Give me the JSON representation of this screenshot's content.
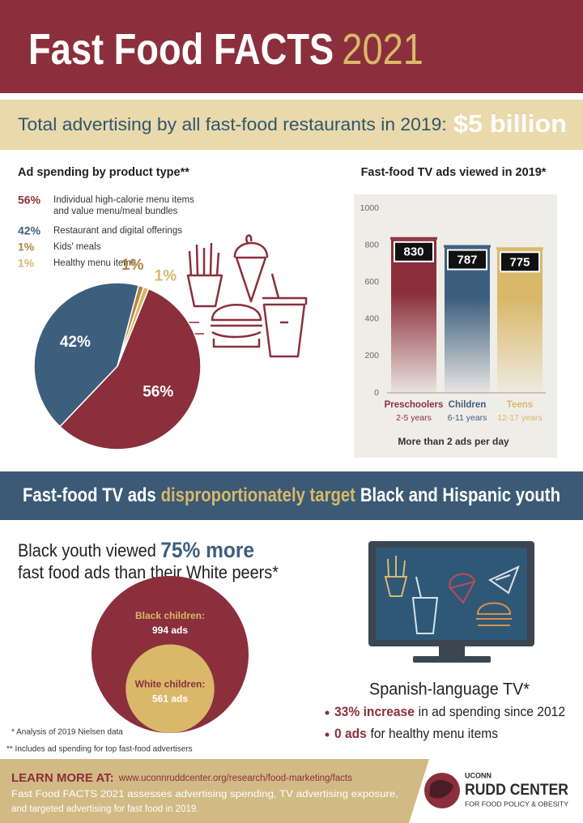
{
  "header": {
    "title": "Fast Food FACTS",
    "year": "2021"
  },
  "banner": {
    "text": "Total advertising by all fast-food restaurants in 2019:",
    "amount": "$5 billion"
  },
  "chart_data": [
    {
      "type": "pie",
      "title": "Ad spending by product type**",
      "categories": [
        "Individual high-calorie menu items and value menu/meal bundles",
        "Restaurant and digital offerings",
        "Kids' meals",
        "Healthy menu items"
      ],
      "values": [
        56,
        42,
        1,
        1
      ],
      "value_labels": [
        "56%",
        "42%",
        "1%",
        "1%"
      ],
      "colors": [
        "#8b2f3c",
        "#3d5f7e",
        "#b5833f",
        "#d9b86a"
      ]
    },
    {
      "type": "bar",
      "title": "Fast-food TV ads viewed in 2019*",
      "categories": [
        "Preschoolers",
        "Children",
        "Teens"
      ],
      "sublabels": [
        "2-5 years",
        "6-11 years",
        "12-17 years"
      ],
      "values": [
        830,
        787,
        775
      ],
      "colors": [
        "#8b2f3c",
        "#3d5f7e",
        "#d9b86a"
      ],
      "ylim": [
        0,
        1000
      ],
      "yticks": [
        0,
        200,
        400,
        600,
        800,
        1000
      ],
      "grid": false,
      "note": "More than 2 ads per day"
    },
    {
      "type": "nested-circles",
      "categories": [
        "Black children:",
        "White children:"
      ],
      "values": [
        994,
        561
      ],
      "value_labels": [
        "994 ads",
        "561 ads"
      ],
      "colors": [
        "#8b2f3c",
        "#d9b86a"
      ]
    }
  ],
  "target_banner": {
    "start": "Fast-food TV ads",
    "highlight": "disproportionately target",
    "end": "Black and Hispanic youth"
  },
  "black_youth": {
    "start": "Black youth viewed",
    "highlight": "75% more",
    "line2": "fast food ads than their White peers*"
  },
  "spanish": {
    "title": "Spanish-language TV*",
    "bullets": [
      {
        "highlight": "33% increase",
        "text": "in ad spending since 2012"
      },
      {
        "highlight": "0 ads",
        "text": "for healthy menu items"
      }
    ]
  },
  "footnotes": [
    "* Analysis of 2019 Nielsen data",
    "** Includes ad spending for top fast-food advertisers"
  ],
  "footer": {
    "learn_more": "LEARN MORE AT:",
    "url": "www.uconnruddcenter.org/research/food-marketing/facts",
    "description": [
      "Fast Food FACTS 2021 assesses advertising spending, TV advertising exposure,",
      "and targeted advertising for fast food in 2019."
    ],
    "logo": {
      "top": "UCONN",
      "name": "RUDD CENTER",
      "sub": "FOR FOOD POLICY & OBESITY"
    }
  }
}
